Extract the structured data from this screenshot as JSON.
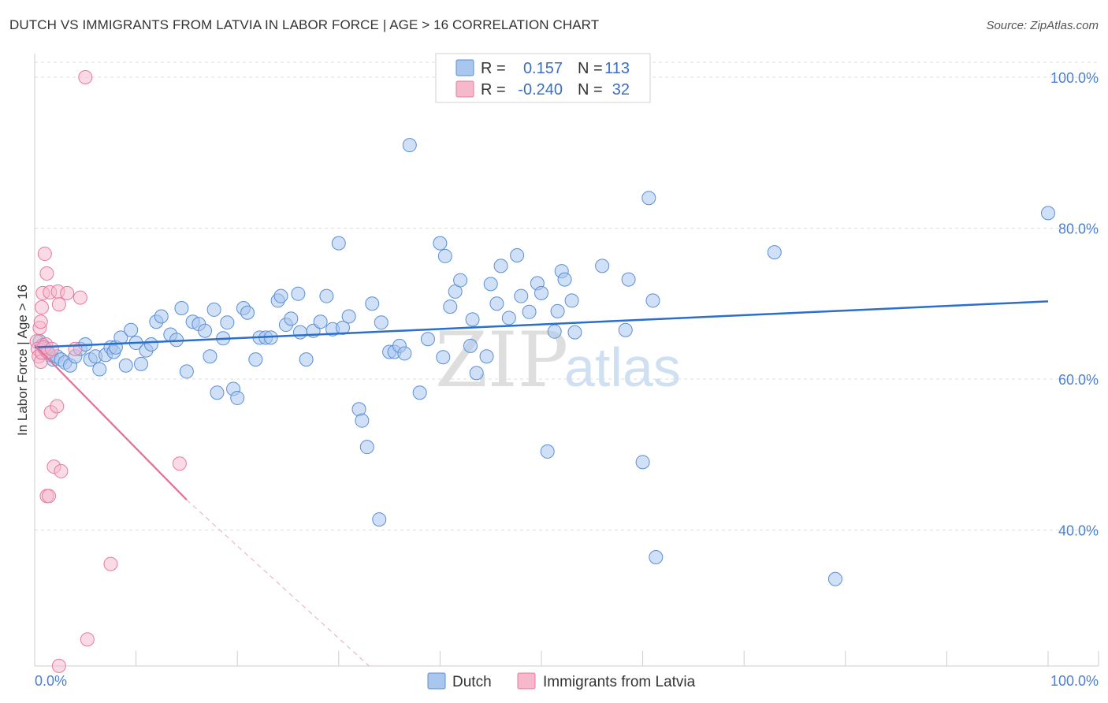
{
  "header": {
    "title": "DUTCH VS IMMIGRANTS FROM LATVIA IN LABOR FORCE | AGE > 16 CORRELATION CHART",
    "source": "Source: ZipAtlas.com"
  },
  "colors": {
    "dutch_fill": "#a9c6ee",
    "dutch_stroke": "#5b8fd6",
    "dutch_line": "#2a6fcc",
    "latvia_fill": "#f6b8cb",
    "latvia_stroke": "#e87a9c",
    "latvia_line": "#e0719a",
    "grid": "#dddddd",
    "axis_text": "#4a7fd0"
  },
  "legend": {
    "rows": [
      {
        "r_label": "R =",
        "r_value": "0.157",
        "n_label": "N =",
        "n_value": "113"
      },
      {
        "r_label": "R =",
        "r_value": "-0.240",
        "n_label": "N =",
        "n_value": "32"
      }
    ]
  },
  "bottom_legend": {
    "dutch": "Dutch",
    "latvia": "Immigrants from Latvia"
  },
  "watermark": {
    "zip": "ZIP",
    "atlas": "atlas"
  },
  "chart_data": {
    "type": "scatter",
    "title": "DUTCH VS IMMIGRANTS FROM LATVIA IN LABOR FORCE | AGE > 16 CORRELATION CHART",
    "xlabel": "",
    "ylabel": "In Labor Force | Age > 16",
    "xlim": [
      0,
      100
    ],
    "ylim": [
      20,
      102
    ],
    "x_tick_labels": [
      "0.0%",
      "100.0%"
    ],
    "y_ticks": [
      40,
      60,
      80,
      100
    ],
    "y_tick_labels": [
      "40.0%",
      "60.0%",
      "80.0%",
      "100.0%"
    ],
    "grid": true,
    "legend_position": "top-center",
    "series": [
      {
        "name": "Dutch",
        "R": 0.157,
        "N": 113,
        "trend": {
          "x": [
            0,
            100
          ],
          "y": [
            64.2,
            70.3
          ]
        },
        "points": [
          [
            0.5,
            65.0
          ],
          [
            0.8,
            64.5
          ],
          [
            1.0,
            64.0
          ],
          [
            1.2,
            63.6
          ],
          [
            1.5,
            63.2
          ],
          [
            1.8,
            62.6
          ],
          [
            2.2,
            63.0
          ],
          [
            2.6,
            62.6
          ],
          [
            3.0,
            62.2
          ],
          [
            3.5,
            61.8
          ],
          [
            4.0,
            63.0
          ],
          [
            4.5,
            64.0
          ],
          [
            5.0,
            64.6
          ],
          [
            5.5,
            62.6
          ],
          [
            6.0,
            63.0
          ],
          [
            6.4,
            61.3
          ],
          [
            7.0,
            63.2
          ],
          [
            7.5,
            64.2
          ],
          [
            7.8,
            63.6
          ],
          [
            8.0,
            64.2
          ],
          [
            8.5,
            65.5
          ],
          [
            9.0,
            61.8
          ],
          [
            9.5,
            66.5
          ],
          [
            10.0,
            64.8
          ],
          [
            10.5,
            62.0
          ],
          [
            11.0,
            63.8
          ],
          [
            11.5,
            64.6
          ],
          [
            12.0,
            67.6
          ],
          [
            12.5,
            68.3
          ],
          [
            13.4,
            65.9
          ],
          [
            14.0,
            65.2
          ],
          [
            14.5,
            69.4
          ],
          [
            15.0,
            61.0
          ],
          [
            15.6,
            67.6
          ],
          [
            16.2,
            67.3
          ],
          [
            16.8,
            66.4
          ],
          [
            17.3,
            63.0
          ],
          [
            17.7,
            69.2
          ],
          [
            18.0,
            58.2
          ],
          [
            18.6,
            65.4
          ],
          [
            19.0,
            67.5
          ],
          [
            19.6,
            58.7
          ],
          [
            20.0,
            57.5
          ],
          [
            20.6,
            69.4
          ],
          [
            21.0,
            68.8
          ],
          [
            21.8,
            62.6
          ],
          [
            22.2,
            65.5
          ],
          [
            22.8,
            65.5
          ],
          [
            23.3,
            65.5
          ],
          [
            24.0,
            70.4
          ],
          [
            24.3,
            71.0
          ],
          [
            24.8,
            67.2
          ],
          [
            25.3,
            68.0
          ],
          [
            26.0,
            71.3
          ],
          [
            26.2,
            66.2
          ],
          [
            26.8,
            62.6
          ],
          [
            27.5,
            66.4
          ],
          [
            28.2,
            67.6
          ],
          [
            28.8,
            71.0
          ],
          [
            29.4,
            66.6
          ],
          [
            30.0,
            78.0
          ],
          [
            30.4,
            66.8
          ],
          [
            31.0,
            68.3
          ],
          [
            32.0,
            56.0
          ],
          [
            32.3,
            54.5
          ],
          [
            32.8,
            51.0
          ],
          [
            33.3,
            70.0
          ],
          [
            34.0,
            41.4
          ],
          [
            34.2,
            67.5
          ],
          [
            35.0,
            63.6
          ],
          [
            35.5,
            63.6
          ],
          [
            36.0,
            64.4
          ],
          [
            36.5,
            63.4
          ],
          [
            37.0,
            91.0
          ],
          [
            38.0,
            58.2
          ],
          [
            38.8,
            65.3
          ],
          [
            40.0,
            78.0
          ],
          [
            40.3,
            62.9
          ],
          [
            40.5,
            76.3
          ],
          [
            41.0,
            69.6
          ],
          [
            41.5,
            71.6
          ],
          [
            42.0,
            73.1
          ],
          [
            43.0,
            64.4
          ],
          [
            43.2,
            67.9
          ],
          [
            43.6,
            60.8
          ],
          [
            44.6,
            63.0
          ],
          [
            45.0,
            72.6
          ],
          [
            45.6,
            70.0
          ],
          [
            46.0,
            75.0
          ],
          [
            46.8,
            68.1
          ],
          [
            47.6,
            76.4
          ],
          [
            48.0,
            71.0
          ],
          [
            48.8,
            68.9
          ],
          [
            49.6,
            72.7
          ],
          [
            50.0,
            71.4
          ],
          [
            50.6,
            50.4
          ],
          [
            51.3,
            66.3
          ],
          [
            51.6,
            69.0
          ],
          [
            52.0,
            74.3
          ],
          [
            52.3,
            73.2
          ],
          [
            53.0,
            70.4
          ],
          [
            53.3,
            66.2
          ],
          [
            56.0,
            75.0
          ],
          [
            58.3,
            66.5
          ],
          [
            58.6,
            73.2
          ],
          [
            60.0,
            49.0
          ],
          [
            60.6,
            84.0
          ],
          [
            61.0,
            70.4
          ],
          [
            61.3,
            36.4
          ],
          [
            73.0,
            76.8
          ],
          [
            79.0,
            33.5
          ],
          [
            100.0,
            82.0
          ]
        ]
      },
      {
        "name": "Immigrants from Latvia",
        "R": -0.24,
        "N": 32,
        "trend": {
          "x": [
            0,
            15
          ],
          "y": [
            64.5,
            44.0
          ],
          "dashed_to": {
            "x": 33,
            "y": 20
          }
        },
        "points": [
          [
            0.2,
            65.0
          ],
          [
            0.3,
            64.0
          ],
          [
            0.4,
            63.0
          ],
          [
            0.5,
            66.8
          ],
          [
            0.6,
            62.3
          ],
          [
            0.6,
            67.6
          ],
          [
            0.7,
            69.5
          ],
          [
            0.7,
            63.5
          ],
          [
            0.8,
            71.4
          ],
          [
            1.0,
            76.6
          ],
          [
            1.1,
            64.6
          ],
          [
            1.2,
            74.0
          ],
          [
            1.3,
            63.6
          ],
          [
            1.5,
            71.5
          ],
          [
            1.6,
            55.6
          ],
          [
            1.9,
            48.4
          ],
          [
            2.2,
            56.4
          ],
          [
            2.3,
            71.6
          ],
          [
            2.4,
            22.0
          ],
          [
            2.4,
            69.9
          ],
          [
            2.6,
            47.8
          ],
          [
            3.2,
            71.4
          ],
          [
            4.0,
            64.0
          ],
          [
            4.5,
            70.8
          ],
          [
            5.0,
            100.0
          ],
          [
            5.2,
            25.5
          ],
          [
            7.5,
            35.5
          ],
          [
            14.3,
            48.8
          ],
          [
            1.2,
            44.5
          ],
          [
            1.4,
            44.5
          ],
          [
            0.9,
            64.2
          ],
          [
            1.7,
            64.0
          ]
        ]
      }
    ]
  }
}
